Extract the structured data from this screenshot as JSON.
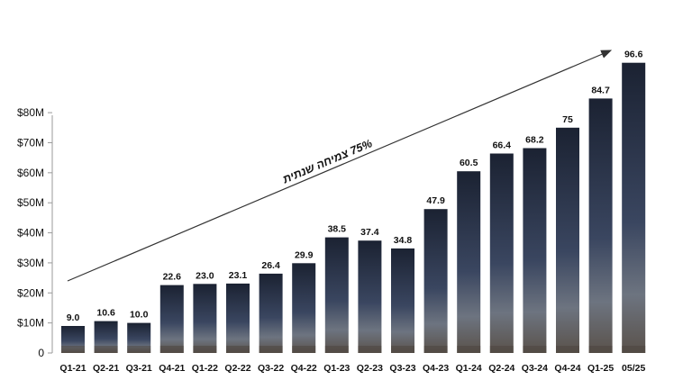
{
  "chart_data": {
    "type": "bar",
    "title": "",
    "xlabel": "",
    "ylabel": "",
    "categories": [
      "Q1-21",
      "Q2-21",
      "Q3-21",
      "Q4-21",
      "Q1-22",
      "Q2-22",
      "Q3-22",
      "Q4-22",
      "Q1-23",
      "Q2-23",
      "Q3-23",
      "Q4-23",
      "Q1-24",
      "Q2-24",
      "Q3-24",
      "Q4-24",
      "Q1-25",
      "05/25"
    ],
    "values": [
      9.0,
      10.6,
      10.0,
      22.6,
      23.0,
      23.1,
      26.4,
      29.9,
      38.5,
      37.4,
      34.8,
      47.9,
      60.5,
      66.4,
      68.2,
      75,
      84.7,
      96.6
    ],
    "value_labels": [
      "9.0",
      "10.6",
      "10.0",
      "22.6",
      "23.0",
      "23.1",
      "26.4",
      "29.9",
      "38.5",
      "37.4",
      "34.8",
      "47.9",
      "60.5",
      "66.4",
      "68.2",
      "75",
      "84.7",
      "96.6"
    ],
    "y_ticks": [
      0,
      10,
      20,
      30,
      40,
      50,
      60,
      70,
      80
    ],
    "y_tick_labels": [
      "0",
      "$10M",
      "$20M",
      "$30M",
      "$40M",
      "$50M",
      "$60M",
      "$70M",
      "$80M"
    ],
    "ylim": [
      0,
      100
    ],
    "grid": false,
    "legend": "none",
    "annotation": {
      "text": "75% צמיחה שנתית",
      "kind": "trend-arrow"
    },
    "colors": {
      "bar_top": "#1b2232",
      "bar_mid": "#3a4660",
      "bar_ground": "#6b6560",
      "axis": "#999999",
      "text": "#111111"
    }
  }
}
